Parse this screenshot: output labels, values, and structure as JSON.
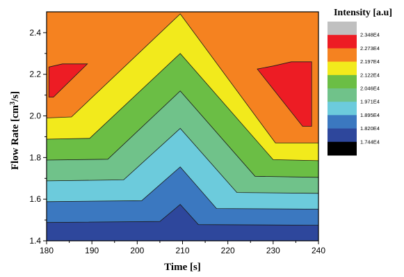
{
  "chart_data": {
    "type": "heatmap",
    "subtype": "filled-contour",
    "xlabel": "Time [s]",
    "ylabel": "Flow Rate [cm³/s]",
    "ylabel_parts": {
      "main": "Flow Rate [cm",
      "sup": "3",
      "end": "/s]"
    },
    "xlim": [
      180,
      240
    ],
    "ylim": [
      1.4,
      2.5
    ],
    "xticks": [
      180,
      190,
      200,
      210,
      220,
      230,
      240
    ],
    "xtick_labels": [
      "180",
      "190",
      "200",
      "210",
      "220",
      "230",
      "240"
    ],
    "yticks": [
      1.4,
      1.6,
      1.8,
      2.0,
      2.2,
      2.4
    ],
    "ytick_labels": [
      "1.4",
      "1.6",
      "1.8",
      "2.0",
      "2.2",
      "2.4"
    ],
    "legend_title": "Intensity [a.u]",
    "legend_placement": "right",
    "levels": [
      {
        "label": "2.348E4",
        "color": "#c0c0c0"
      },
      {
        "label": "2.273E4",
        "color": "#ed1c24"
      },
      {
        "label": "2.197E4",
        "color": "#f58220"
      },
      {
        "label": "2.122E4",
        "color": "#f2ea1c"
      },
      {
        "label": "2.046E4",
        "color": "#6bbe45"
      },
      {
        "label": "1.971E4",
        "color": "#70c28a"
      },
      {
        "label": "1.895E4",
        "color": "#6ccbdc"
      },
      {
        "label": "1.820E4",
        "color": "#3b78c0"
      },
      {
        "label": "1.744E4",
        "color": "#2e479c"
      },
      {
        "label": "",
        "color": "#000000"
      }
    ],
    "background_color": "#f58220",
    "bands": [
      {
        "name": "band-1744",
        "color": "#2e479c",
        "upper": [
          [
            180,
            1.488
          ],
          [
            205,
            1.493
          ],
          [
            209.5,
            1.575
          ],
          [
            213.5,
            1.478
          ],
          [
            240,
            1.475
          ]
        ]
      },
      {
        "name": "band-1820",
        "color": "#3b78c0",
        "upper": [
          [
            180,
            1.588
          ],
          [
            201,
            1.593
          ],
          [
            209.5,
            1.755
          ],
          [
            217.5,
            1.555
          ],
          [
            240,
            1.552
          ]
        ]
      },
      {
        "name": "band-1895",
        "color": "#6ccbdc",
        "upper": [
          [
            180,
            1.688
          ],
          [
            197,
            1.693
          ],
          [
            209.5,
            1.94
          ],
          [
            222,
            1.632
          ],
          [
            240,
            1.628
          ]
        ]
      },
      {
        "name": "band-1971",
        "color": "#70c28a",
        "upper": [
          [
            180,
            1.788
          ],
          [
            193.5,
            1.792
          ],
          [
            209.5,
            2.12
          ],
          [
            226,
            1.71
          ],
          [
            240,
            1.705
          ]
        ]
      },
      {
        "name": "band-2046",
        "color": "#6bbe45",
        "upper": [
          [
            180,
            1.888
          ],
          [
            189.5,
            1.892
          ],
          [
            209.5,
            2.3
          ],
          [
            230,
            1.79
          ],
          [
            240,
            1.785
          ]
        ]
      },
      {
        "name": "band-2122",
        "color": "#f2ea1c",
        "upper": [
          [
            180,
            1.99
          ],
          [
            185.5,
            1.995
          ],
          [
            209.5,
            2.49
          ],
          [
            230.5,
            1.87
          ],
          [
            240,
            1.87
          ]
        ]
      }
    ],
    "hotspots": [
      {
        "name": "hotspot-left",
        "color": "#ed1c24",
        "points": [
          [
            180.5,
            2.235
          ],
          [
            183.5,
            2.25
          ],
          [
            189,
            2.25
          ],
          [
            181.5,
            2.09
          ],
          [
            180.5,
            2.09
          ]
        ]
      },
      {
        "name": "hotspot-right",
        "color": "#ed1c24",
        "points": [
          [
            226.5,
            2.225
          ],
          [
            230,
            2.24
          ],
          [
            234,
            2.26
          ],
          [
            238.5,
            2.26
          ],
          [
            238.5,
            1.95
          ],
          [
            236.5,
            1.95
          ]
        ]
      }
    ]
  }
}
